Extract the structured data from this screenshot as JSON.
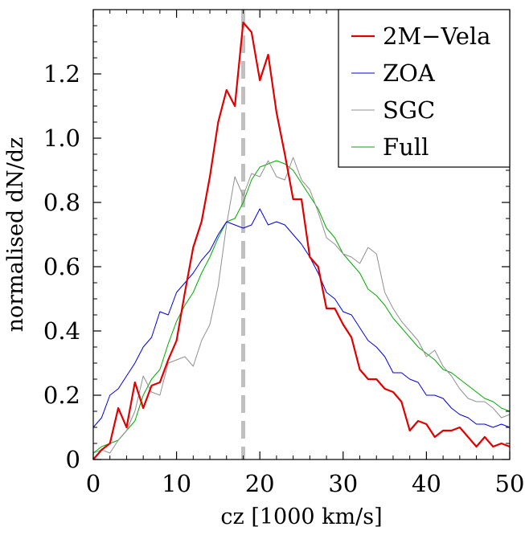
{
  "chart_data": {
    "type": "line",
    "title": "",
    "xlabel": "cz [1000 km/s]",
    "ylabel": "normalised dN/dz",
    "xlim": [
      0,
      50
    ],
    "ylim": [
      0,
      1.4
    ],
    "xticks": [
      0,
      10,
      20,
      30,
      40,
      50
    ],
    "yticks": [
      0,
      0.2,
      0.4,
      0.6,
      0.8,
      1.0,
      1.2
    ],
    "ytick_labels": [
      "0",
      "0.2",
      "0.4",
      "0.6",
      "0.8",
      "1.0",
      "1.2"
    ],
    "grid": false,
    "legend_position": "top-right",
    "reference_line": {
      "x": 18,
      "style": "dashed",
      "color": "#c0c0c0"
    },
    "series": [
      {
        "name": "2M−Vela",
        "color": "#e00000",
        "width": 2.2,
        "x": [
          0,
          1,
          2,
          3,
          4,
          5,
          6,
          7,
          8,
          9,
          10,
          11,
          12,
          13,
          14,
          15,
          16,
          17,
          18,
          19,
          20,
          21,
          22,
          23,
          24,
          25,
          26,
          27,
          28,
          29,
          30,
          31,
          32,
          33,
          34,
          35,
          36,
          37,
          38,
          39,
          40,
          41,
          42,
          43,
          44,
          45,
          46,
          47,
          48,
          49,
          50
        ],
        "values": [
          0.0,
          0.03,
          0.05,
          0.16,
          0.1,
          0.24,
          0.16,
          0.23,
          0.24,
          0.31,
          0.37,
          0.52,
          0.66,
          0.74,
          0.88,
          1.05,
          1.15,
          1.1,
          1.36,
          1.33,
          1.18,
          1.26,
          1.08,
          0.95,
          0.81,
          0.81,
          0.63,
          0.6,
          0.47,
          0.47,
          0.42,
          0.38,
          0.28,
          0.25,
          0.25,
          0.22,
          0.21,
          0.18,
          0.09,
          0.12,
          0.11,
          0.07,
          0.09,
          0.09,
          0.1,
          0.07,
          0.04,
          0.07,
          0.04,
          0.05,
          0.04
        ]
      },
      {
        "name": "ZOA",
        "color": "#0000dd",
        "width": 1,
        "x": [
          0,
          1,
          2,
          3,
          4,
          5,
          6,
          7,
          8,
          9,
          10,
          11,
          12,
          13,
          14,
          15,
          16,
          17,
          18,
          19,
          20,
          21,
          22,
          23,
          24,
          25,
          26,
          27,
          28,
          29,
          30,
          31,
          32,
          33,
          34,
          35,
          36,
          37,
          38,
          39,
          40,
          41,
          42,
          43,
          44,
          45,
          46,
          47,
          48,
          49,
          50
        ],
        "values": [
          0.1,
          0.13,
          0.2,
          0.22,
          0.26,
          0.3,
          0.35,
          0.38,
          0.46,
          0.45,
          0.52,
          0.55,
          0.58,
          0.62,
          0.65,
          0.7,
          0.74,
          0.73,
          0.72,
          0.73,
          0.78,
          0.73,
          0.74,
          0.73,
          0.7,
          0.67,
          0.63,
          0.58,
          0.52,
          0.5,
          0.46,
          0.45,
          0.41,
          0.37,
          0.35,
          0.32,
          0.27,
          0.27,
          0.25,
          0.24,
          0.2,
          0.2,
          0.19,
          0.16,
          0.14,
          0.13,
          0.11,
          0.11,
          0.1,
          0.11,
          0.1
        ]
      },
      {
        "name": "SGC",
        "color": "#909090",
        "width": 1,
        "x": [
          0,
          1,
          2,
          3,
          4,
          5,
          6,
          7,
          8,
          9,
          10,
          11,
          12,
          13,
          14,
          15,
          16,
          17,
          18,
          19,
          20,
          21,
          22,
          23,
          24,
          25,
          26,
          27,
          28,
          29,
          30,
          31,
          32,
          33,
          34,
          35,
          36,
          37,
          38,
          39,
          40,
          41,
          42,
          43,
          44,
          45,
          46,
          47,
          48,
          49,
          50
        ],
        "values": [
          0.02,
          0.03,
          0.02,
          0.06,
          0.09,
          0.15,
          0.26,
          0.21,
          0.2,
          0.3,
          0.31,
          0.32,
          0.29,
          0.37,
          0.42,
          0.54,
          0.73,
          0.88,
          0.82,
          0.89,
          0.88,
          0.93,
          0.88,
          0.87,
          0.94,
          0.87,
          0.84,
          0.77,
          0.69,
          0.67,
          0.64,
          0.63,
          0.61,
          0.66,
          0.64,
          0.52,
          0.47,
          0.43,
          0.4,
          0.37,
          0.32,
          0.34,
          0.29,
          0.26,
          0.22,
          0.19,
          0.18,
          0.18,
          0.16,
          0.13,
          0.14
        ]
      },
      {
        "name": "Full",
        "color": "#00aa00",
        "width": 1,
        "x": [
          0,
          1,
          2,
          3,
          4,
          5,
          6,
          7,
          8,
          9,
          10,
          11,
          12,
          13,
          14,
          15,
          16,
          17,
          18,
          19,
          20,
          21,
          22,
          23,
          24,
          25,
          26,
          27,
          28,
          29,
          30,
          31,
          32,
          33,
          34,
          35,
          36,
          37,
          38,
          39,
          40,
          41,
          42,
          43,
          44,
          45,
          46,
          47,
          48,
          49,
          50
        ],
        "values": [
          0.02,
          0.04,
          0.05,
          0.06,
          0.09,
          0.12,
          0.2,
          0.25,
          0.28,
          0.36,
          0.43,
          0.48,
          0.52,
          0.58,
          0.63,
          0.69,
          0.74,
          0.75,
          0.8,
          0.87,
          0.91,
          0.92,
          0.93,
          0.92,
          0.9,
          0.86,
          0.82,
          0.78,
          0.72,
          0.69,
          0.64,
          0.61,
          0.58,
          0.53,
          0.51,
          0.48,
          0.44,
          0.41,
          0.38,
          0.35,
          0.33,
          0.31,
          0.28,
          0.27,
          0.25,
          0.23,
          0.21,
          0.19,
          0.18,
          0.16,
          0.15
        ]
      }
    ]
  }
}
